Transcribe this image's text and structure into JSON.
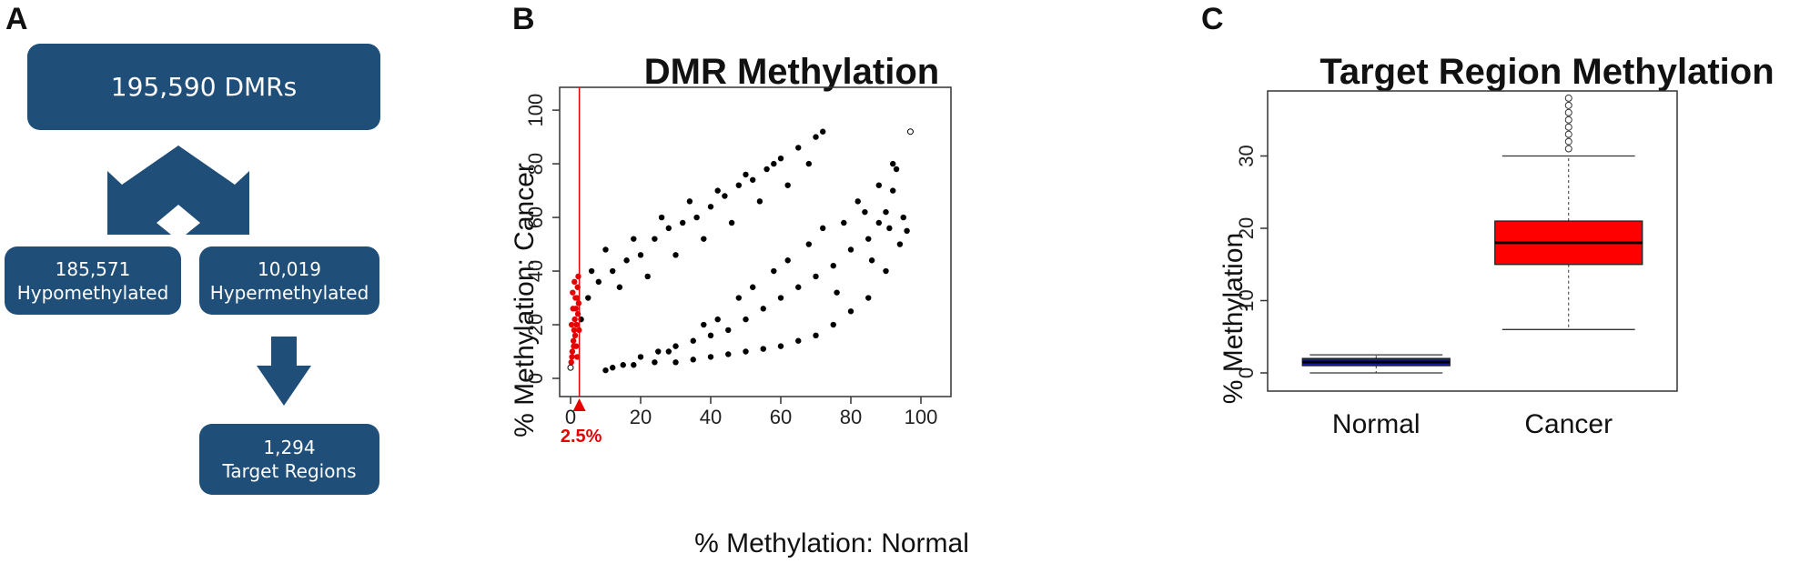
{
  "panels": {
    "a": "A",
    "b": "B",
    "c": "C"
  },
  "flowchart": {
    "total": "195,590 DMRs",
    "hypo_count": "185,571",
    "hypo_label": "Hypomethylated",
    "hyper_count": "10,019",
    "hyper_label": "Hypermethylated",
    "target_count": "1,294",
    "target_label": "Target Regions",
    "box_color": "#1f4e79"
  },
  "chart_data": [
    {
      "type": "scatter",
      "title": "DMR Methylation",
      "xlabel": "% Methylation: Normal",
      "ylabel": "% Methylation: Cancer",
      "xlim": [
        0,
        100
      ],
      "ylim": [
        0,
        100
      ],
      "xticks": [
        0,
        20,
        40,
        60,
        80,
        100
      ],
      "yticks": [
        0,
        20,
        40,
        60,
        80,
        100
      ],
      "threshold": {
        "x": 2.5,
        "label": "2.5%",
        "color": "#e60000"
      },
      "series": [
        {
          "color": "#000000",
          "points": [
            [
              3,
              22
            ],
            [
              5,
              30
            ],
            [
              8,
              36
            ],
            [
              12,
              40
            ],
            [
              16,
              44
            ],
            [
              20,
              46
            ],
            [
              24,
              52
            ],
            [
              28,
              56
            ],
            [
              32,
              58
            ],
            [
              36,
              60
            ],
            [
              40,
              64
            ],
            [
              44,
              68
            ],
            [
              48,
              72
            ],
            [
              52,
              74
            ],
            [
              56,
              78
            ],
            [
              60,
              82
            ],
            [
              65,
              86
            ],
            [
              70,
              90
            ],
            [
              72,
              92
            ],
            [
              10,
              48
            ],
            [
              18,
              52
            ],
            [
              26,
              60
            ],
            [
              34,
              66
            ],
            [
              42,
              70
            ],
            [
              50,
              76
            ],
            [
              58,
              80
            ],
            [
              6,
              40
            ],
            [
              14,
              34
            ],
            [
              22,
              38
            ],
            [
              30,
              46
            ],
            [
              38,
              52
            ],
            [
              46,
              58
            ],
            [
              54,
              66
            ],
            [
              62,
              72
            ],
            [
              68,
              80
            ],
            [
              15,
              5
            ],
            [
              20,
              8
            ],
            [
              25,
              10
            ],
            [
              30,
              12
            ],
            [
              35,
              14
            ],
            [
              40,
              16
            ],
            [
              45,
              18
            ],
            [
              50,
              22
            ],
            [
              55,
              26
            ],
            [
              60,
              30
            ],
            [
              65,
              34
            ],
            [
              70,
              38
            ],
            [
              75,
              42
            ],
            [
              80,
              48
            ],
            [
              85,
              52
            ],
            [
              88,
              58
            ],
            [
              90,
              62
            ],
            [
              92,
              70
            ],
            [
              93,
              78
            ],
            [
              94,
              50
            ],
            [
              90,
              40
            ],
            [
              85,
              30
            ],
            [
              80,
              25
            ],
            [
              75,
              20
            ],
            [
              70,
              16
            ],
            [
              65,
              14
            ],
            [
              60,
              12
            ],
            [
              55,
              11
            ],
            [
              50,
              10
            ],
            [
              45,
              9
            ],
            [
              40,
              8
            ],
            [
              35,
              7
            ],
            [
              30,
              6
            ],
            [
              24,
              6
            ],
            [
              18,
              5
            ],
            [
              10,
              3
            ],
            [
              12,
              4
            ],
            [
              28,
              10
            ],
            [
              42,
              22
            ],
            [
              52,
              34
            ],
            [
              62,
              44
            ],
            [
              72,
              56
            ],
            [
              82,
              66
            ],
            [
              88,
              72
            ],
            [
              92,
              80
            ],
            [
              95,
              60
            ],
            [
              96,
              55
            ],
            [
              84,
              62
            ],
            [
              78,
              58
            ],
            [
              68,
              50
            ],
            [
              58,
              40
            ],
            [
              48,
              30
            ],
            [
              38,
              20
            ],
            [
              76,
              32
            ],
            [
              86,
              44
            ],
            [
              91,
              56
            ]
          ]
        },
        {
          "color": "#e60000",
          "points": [
            [
              0.2,
              6
            ],
            [
              0.5,
              10
            ],
            [
              0.8,
              14
            ],
            [
              1.0,
              18
            ],
            [
              1.2,
              22
            ],
            [
              1.5,
              26
            ],
            [
              1.8,
              30
            ],
            [
              2.0,
              34
            ],
            [
              2.2,
              38
            ],
            [
              0.4,
              8
            ],
            [
              0.9,
              12
            ],
            [
              1.3,
              16
            ],
            [
              1.7,
              20
            ],
            [
              2.1,
              24
            ],
            [
              2.3,
              28
            ],
            [
              0.6,
              32
            ],
            [
              1.1,
              36
            ],
            [
              1.6,
              12
            ],
            [
              2.4,
              18
            ],
            [
              0.3,
              20
            ],
            [
              1.9,
              8
            ],
            [
              0.7,
              26
            ],
            [
              1.4,
              30
            ]
          ]
        },
        {
          "color": "#000000",
          "hollow": true,
          "points": [
            [
              0,
              4
            ],
            [
              97,
              92
            ]
          ]
        }
      ]
    },
    {
      "type": "box",
      "title": "Target Region Methylation",
      "ylabel": "% Methylation",
      "ylim": [
        0,
        36
      ],
      "yticks": [
        0,
        10,
        20,
        30
      ],
      "categories": [
        "Normal",
        "Cancer"
      ],
      "boxes": [
        {
          "category": "Normal",
          "color": "#1a1aa6",
          "whisker_low": 0,
          "q1": 1,
          "median": 1.5,
          "q3": 2,
          "whisker_high": 2.5,
          "outliers": []
        },
        {
          "category": "Cancer",
          "color": "#ff0000",
          "whisker_low": 6,
          "q1": 15,
          "median": 18,
          "q3": 21,
          "whisker_high": 30,
          "outliers": [
            31,
            32,
            33,
            34,
            35,
            36,
            37,
            38
          ]
        }
      ]
    }
  ]
}
